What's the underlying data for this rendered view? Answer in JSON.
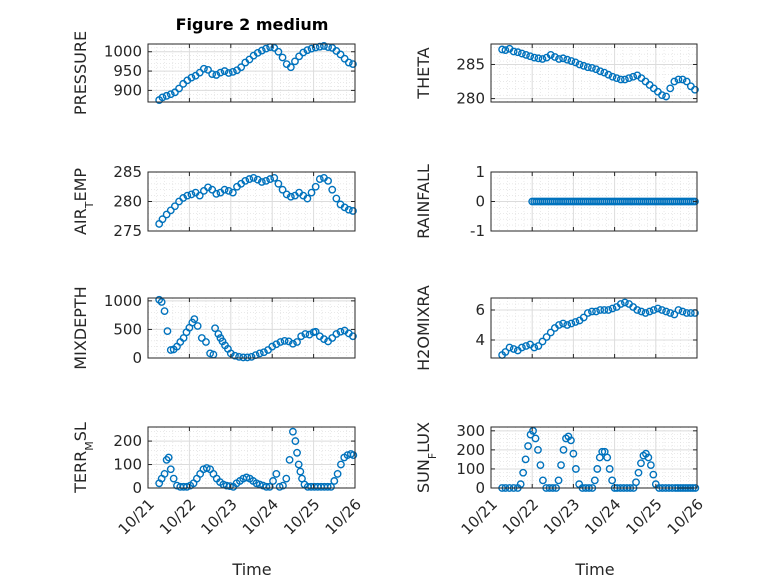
{
  "figure_title": "Figure 2 medium",
  "marker_color": "#0072BD",
  "grid": true,
  "chart_data": [
    {
      "type": "scatter",
      "ylabel": "PRESSURE",
      "ylim": [
        870,
        1020
      ],
      "yticks": [
        900,
        950,
        1000
      ],
      "xlim": [
        0,
        5
      ],
      "x": [
        0.27,
        0.35,
        0.45,
        0.55,
        0.65,
        0.75,
        0.85,
        0.95,
        1.05,
        1.15,
        1.25,
        1.35,
        1.45,
        1.55,
        1.65,
        1.75,
        1.85,
        1.95,
        2.05,
        2.15,
        2.25,
        2.35,
        2.45,
        2.55,
        2.65,
        2.75,
        2.85,
        2.95,
        3.05,
        3.15,
        3.25,
        3.35,
        3.45,
        3.55,
        3.65,
        3.75,
        3.85,
        3.95,
        4.05,
        4.15,
        4.25,
        4.35,
        4.45,
        4.55,
        4.65,
        4.75,
        4.85,
        4.95
      ],
      "y": [
        875,
        882,
        886,
        890,
        895,
        905,
        917,
        926,
        933,
        938,
        946,
        956,
        953,
        942,
        940,
        946,
        950,
        945,
        948,
        952,
        960,
        972,
        980,
        990,
        997,
        1003,
        1008,
        1012,
        1010,
        1000,
        985,
        968,
        960,
        975,
        988,
        998,
        1004,
        1008,
        1011,
        1013,
        1015,
        1012,
        1010,
        1002,
        993,
        982,
        972,
        968
      ]
    },
    {
      "type": "scatter",
      "ylabel": "THETA",
      "ylim": [
        279.5,
        288
      ],
      "yticks": [
        280,
        285
      ],
      "xlim": [
        0,
        5
      ],
      "x": [
        0.27,
        0.35,
        0.45,
        0.55,
        0.65,
        0.75,
        0.85,
        0.95,
        1.05,
        1.15,
        1.25,
        1.35,
        1.45,
        1.55,
        1.65,
        1.75,
        1.85,
        1.95,
        2.05,
        2.15,
        2.25,
        2.35,
        2.45,
        2.55,
        2.65,
        2.75,
        2.85,
        2.95,
        3.05,
        3.15,
        3.25,
        3.35,
        3.45,
        3.55,
        3.65,
        3.75,
        3.85,
        3.95,
        4.05,
        4.15,
        4.25,
        4.35,
        4.45,
        4.55,
        4.65,
        4.75,
        4.85,
        4.95
      ],
      "y": [
        287.2,
        287.1,
        287.3,
        286.9,
        286.8,
        286.6,
        286.4,
        286.2,
        286.0,
        285.9,
        285.8,
        286.0,
        286.4,
        286.1,
        285.8,
        285.9,
        285.7,
        285.5,
        285.3,
        285.0,
        284.8,
        284.6,
        284.5,
        284.3,
        284.0,
        283.8,
        283.5,
        283.2,
        283.0,
        282.8,
        282.8,
        283.0,
        283.2,
        283.4,
        283.0,
        282.5,
        282.0,
        281.5,
        281.0,
        280.5,
        280.3,
        281.5,
        282.5,
        282.8,
        282.8,
        282.5,
        281.8,
        281.3
      ]
    },
    {
      "type": "scatter",
      "ylabel": "AIR_TEMP",
      "ylim": [
        275,
        285
      ],
      "yticks": [
        275,
        280,
        285
      ],
      "xlim": [
        0,
        5
      ],
      "x": [
        0.27,
        0.35,
        0.45,
        0.55,
        0.65,
        0.75,
        0.85,
        0.95,
        1.05,
        1.15,
        1.25,
        1.35,
        1.45,
        1.55,
        1.65,
        1.75,
        1.85,
        1.95,
        2.05,
        2.15,
        2.25,
        2.35,
        2.45,
        2.55,
        2.65,
        2.75,
        2.85,
        2.95,
        3.05,
        3.15,
        3.25,
        3.35,
        3.45,
        3.55,
        3.65,
        3.75,
        3.85,
        3.95,
        4.05,
        4.15,
        4.25,
        4.35,
        4.45,
        4.55,
        4.65,
        4.75,
        4.85,
        4.95
      ],
      "y": [
        276.2,
        277.0,
        277.8,
        278.5,
        279.2,
        280.0,
        280.6,
        281.0,
        281.2,
        281.5,
        281.0,
        281.8,
        282.4,
        282.0,
        281.3,
        281.5,
        282.0,
        281.8,
        281.5,
        282.5,
        283.0,
        283.5,
        283.8,
        284.0,
        283.7,
        283.3,
        283.5,
        283.8,
        284.0,
        283.0,
        282.0,
        281.2,
        280.8,
        281.0,
        281.5,
        281.0,
        280.5,
        281.5,
        282.5,
        283.8,
        284.0,
        283.5,
        282.0,
        280.5,
        279.5,
        279.0,
        278.6,
        278.4
      ]
    },
    {
      "type": "scatter",
      "ylabel": "RAINFALL",
      "ylim": [
        -1,
        1
      ],
      "yticks": [
        -1,
        0,
        1
      ],
      "xlim": [
        0,
        5
      ],
      "x": [
        1.0,
        1.05,
        1.1,
        1.15,
        1.2,
        1.25,
        1.3,
        1.35,
        1.4,
        1.45,
        1.5,
        1.55,
        1.6,
        1.65,
        1.7,
        1.75,
        1.8,
        1.85,
        1.9,
        1.95,
        2.0,
        2.05,
        2.1,
        2.15,
        2.2,
        2.25,
        2.3,
        2.35,
        2.4,
        2.45,
        2.5,
        2.55,
        2.6,
        2.65,
        2.7,
        2.75,
        2.8,
        2.85,
        2.9,
        2.95,
        3.0,
        3.05,
        3.1,
        3.15,
        3.2,
        3.25,
        3.3,
        3.35,
        3.4,
        3.45,
        3.5,
        3.55,
        3.6,
        3.65,
        3.7,
        3.75,
        3.8,
        3.85,
        3.9,
        3.95,
        4.0,
        4.05,
        4.1,
        4.15,
        4.2,
        4.25,
        4.3,
        4.35,
        4.4,
        4.45,
        4.5,
        4.55,
        4.6,
        4.65,
        4.7,
        4.75,
        4.8,
        4.85,
        4.9,
        4.95
      ],
      "y": [
        0,
        0,
        0,
        0,
        0,
        0,
        0,
        0,
        0,
        0,
        0,
        0,
        0,
        0,
        0,
        0,
        0,
        0,
        0,
        0,
        0,
        0,
        0,
        0,
        0,
        0,
        0,
        0,
        0,
        0,
        0,
        0,
        0,
        0,
        0,
        0,
        0,
        0,
        0,
        0,
        0,
        0,
        0,
        0,
        0,
        0,
        0,
        0,
        0,
        0,
        0,
        0,
        0,
        0,
        0,
        0,
        0,
        0,
        0,
        0,
        0,
        0,
        0,
        0,
        0,
        0,
        0,
        0,
        0,
        0,
        0,
        0,
        0,
        0,
        0,
        0,
        0,
        0,
        0,
        0
      ]
    },
    {
      "type": "scatter",
      "ylabel": "MIXDEPTH",
      "ylim": [
        0,
        1050
      ],
      "yticks": [
        0,
        500,
        1000
      ],
      "xlim": [
        0,
        5
      ],
      "x": [
        0.27,
        0.33,
        0.4,
        0.47,
        0.55,
        0.62,
        0.7,
        0.78,
        0.86,
        0.93,
        1.0,
        1.07,
        1.12,
        1.2,
        1.3,
        1.4,
        1.5,
        1.58,
        1.62,
        1.7,
        1.75,
        1.8,
        1.86,
        1.93,
        2.0,
        2.1,
        2.2,
        2.3,
        2.4,
        2.5,
        2.6,
        2.7,
        2.8,
        2.9,
        3.0,
        3.1,
        3.2,
        3.3,
        3.4,
        3.5,
        3.6,
        3.7,
        3.8,
        3.9,
        4.0,
        4.05,
        4.15,
        4.25,
        4.35,
        4.45,
        4.55,
        4.65,
        4.75,
        4.85,
        4.95
      ],
      "y": [
        1020,
        980,
        820,
        470,
        140,
        150,
        200,
        280,
        350,
        450,
        530,
        620,
        680,
        560,
        350,
        280,
        80,
        60,
        520,
        420,
        350,
        290,
        220,
        160,
        80,
        40,
        20,
        10,
        10,
        20,
        50,
        80,
        100,
        140,
        200,
        240,
        280,
        300,
        290,
        250,
        280,
        380,
        420,
        410,
        450,
        460,
        380,
        330,
        290,
        350,
        420,
        460,
        480,
        430,
        380
      ]
    },
    {
      "type": "scatter",
      "ylabel": "H2OMIXRA",
      "ylim": [
        2.8,
        6.8
      ],
      "yticks": [
        4,
        6
      ],
      "xlim": [
        0,
        5
      ],
      "x": [
        0.27,
        0.35,
        0.45,
        0.55,
        0.65,
        0.75,
        0.85,
        0.95,
        1.05,
        1.15,
        1.25,
        1.35,
        1.45,
        1.55,
        1.65,
        1.75,
        1.85,
        1.95,
        2.05,
        2.15,
        2.25,
        2.35,
        2.45,
        2.55,
        2.65,
        2.75,
        2.85,
        2.95,
        3.05,
        3.15,
        3.25,
        3.35,
        3.45,
        3.55,
        3.65,
        3.75,
        3.85,
        3.95,
        4.05,
        4.15,
        4.25,
        4.35,
        4.45,
        4.55,
        4.65,
        4.75,
        4.85,
        4.95
      ],
      "y": [
        3.0,
        3.2,
        3.5,
        3.4,
        3.3,
        3.5,
        3.6,
        3.7,
        3.5,
        3.6,
        3.9,
        4.2,
        4.5,
        4.8,
        5.0,
        5.1,
        5.0,
        5.1,
        5.2,
        5.3,
        5.5,
        5.8,
        5.9,
        5.9,
        6.0,
        6.0,
        6.0,
        6.1,
        6.2,
        6.4,
        6.5,
        6.4,
        6.2,
        6.0,
        5.9,
        5.8,
        5.9,
        6.0,
        6.1,
        6.0,
        5.9,
        5.8,
        5.7,
        6.0,
        5.9,
        5.8,
        5.8,
        5.8
      ]
    },
    {
      "type": "scatter",
      "ylabel": "TERR_MSL",
      "ylim": [
        0,
        260
      ],
      "yticks": [
        0,
        100,
        200
      ],
      "xlim": [
        0,
        5
      ],
      "x": [
        0.27,
        0.33,
        0.4,
        0.45,
        0.5,
        0.55,
        0.62,
        0.7,
        0.78,
        0.86,
        0.94,
        1.02,
        1.1,
        1.18,
        1.26,
        1.34,
        1.42,
        1.5,
        1.58,
        1.66,
        1.74,
        1.82,
        1.9,
        1.98,
        2.06,
        2.14,
        2.22,
        2.3,
        2.38,
        2.46,
        2.54,
        2.62,
        2.7,
        2.78,
        2.86,
        2.94,
        3.02,
        3.1,
        3.18,
        3.26,
        3.34,
        3.42,
        3.5,
        3.56,
        3.6,
        3.64,
        3.68,
        3.72,
        3.78,
        3.86,
        3.94,
        4.02,
        4.1,
        4.18,
        4.26,
        4.34,
        4.42,
        4.5,
        4.58,
        4.66,
        4.74,
        4.82,
        4.9,
        4.96
      ],
      "y": [
        20,
        40,
        60,
        120,
        130,
        80,
        40,
        10,
        5,
        5,
        5,
        10,
        20,
        40,
        60,
        80,
        85,
        80,
        60,
        40,
        25,
        15,
        10,
        8,
        5,
        20,
        30,
        40,
        45,
        40,
        30,
        20,
        15,
        10,
        5,
        5,
        30,
        60,
        5,
        10,
        40,
        120,
        240,
        200,
        150,
        100,
        70,
        40,
        15,
        5,
        5,
        5,
        5,
        5,
        5,
        5,
        5,
        30,
        60,
        100,
        130,
        140,
        145,
        140
      ]
    },
    {
      "type": "scatter",
      "ylabel": "SUN_FLUX",
      "ylim": [
        0,
        320
      ],
      "yticks": [
        0,
        100,
        200,
        300
      ],
      "xlim": [
        0,
        5
      ],
      "x": [
        0.27,
        0.35,
        0.45,
        0.55,
        0.65,
        0.72,
        0.78,
        0.84,
        0.9,
        0.96,
        1.02,
        1.08,
        1.14,
        1.2,
        1.26,
        1.34,
        1.42,
        1.5,
        1.58,
        1.64,
        1.7,
        1.76,
        1.82,
        1.88,
        1.94,
        2.0,
        2.06,
        2.14,
        2.22,
        2.3,
        2.38,
        2.46,
        2.52,
        2.58,
        2.64,
        2.7,
        2.76,
        2.82,
        2.88,
        2.94,
        3.0,
        3.06,
        3.14,
        3.22,
        3.3,
        3.38,
        3.46,
        3.52,
        3.58,
        3.64,
        3.7,
        3.76,
        3.82,
        3.88,
        3.94,
        4.0,
        4.08,
        4.16,
        4.24,
        4.32,
        4.4,
        4.48,
        4.54,
        4.6,
        4.66,
        4.72,
        4.78,
        4.84,
        4.9,
        4.96
      ],
      "y": [
        0,
        0,
        0,
        0,
        0,
        20,
        80,
        150,
        220,
        280,
        300,
        260,
        200,
        120,
        40,
        0,
        0,
        0,
        0,
        40,
        120,
        200,
        260,
        270,
        250,
        180,
        100,
        20,
        0,
        0,
        0,
        0,
        40,
        100,
        160,
        190,
        190,
        160,
        100,
        40,
        0,
        0,
        0,
        0,
        0,
        0,
        0,
        30,
        80,
        130,
        170,
        180,
        160,
        120,
        70,
        20,
        0,
        0,
        0,
        0,
        0,
        0,
        0,
        0,
        0,
        0,
        0,
        0,
        0,
        0
      ]
    }
  ],
  "xticklabels": [
    "10/21",
    "10/22",
    "10/23",
    "10/24",
    "10/25",
    "10/26"
  ],
  "xlabel": "Time"
}
